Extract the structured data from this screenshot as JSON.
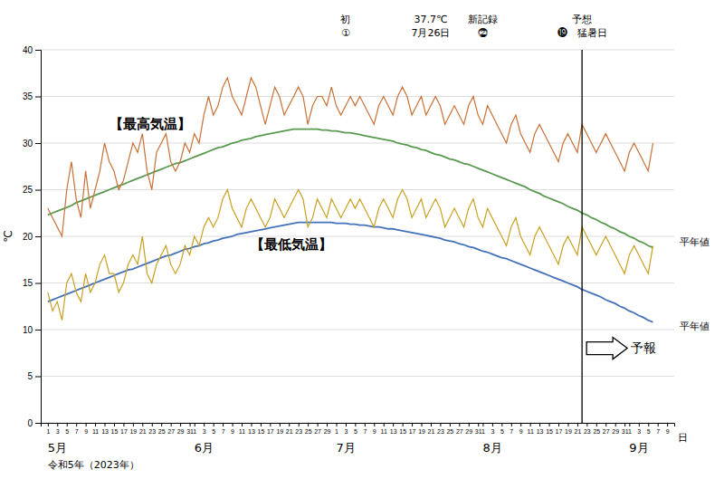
{
  "chart_data": {
    "type": "line",
    "y_label": "℃",
    "x_label": "日",
    "month_labels": [
      "5月",
      "6月",
      "7月",
      "8月",
      "9月"
    ],
    "year_label": "令和5年（2023年）",
    "categories": [
      "1",
      null,
      "3",
      null,
      "5",
      null,
      "7",
      null,
      "9",
      null,
      "11",
      null,
      "13",
      null,
      "15",
      null,
      "17",
      null,
      "19",
      null,
      "21",
      null,
      "23",
      null,
      "25",
      null,
      "27",
      null,
      "29",
      null,
      "31",
      "1",
      null,
      "3",
      null,
      "5",
      null,
      "7",
      null,
      "9",
      null,
      "11",
      null,
      "13",
      null,
      "15",
      null,
      "17",
      null,
      "19",
      null,
      "21",
      null,
      "23",
      null,
      "25",
      null,
      "27",
      null,
      "29",
      null,
      "1",
      null,
      "3",
      null,
      "5",
      null,
      "7",
      null,
      "9",
      null,
      "11",
      null,
      "13",
      null,
      "15",
      null,
      "17",
      null,
      "19",
      null,
      "21",
      null,
      "23",
      null,
      "25",
      null,
      "27",
      null,
      "29",
      null,
      "31",
      "1",
      null,
      "3",
      null,
      "5",
      null,
      "7",
      null,
      "9",
      null,
      "11",
      null,
      "13",
      null,
      "15",
      null,
      "17",
      null,
      "19",
      null,
      "21",
      null,
      "23",
      null,
      "25",
      null,
      "27",
      null,
      "29",
      null,
      "31",
      "1",
      null,
      "3",
      null,
      "5",
      null,
      "7",
      null,
      "9"
    ],
    "series": [
      {
        "name": "平年値",
        "color": "#5a9a50",
        "values": [
          22.3,
          22.5,
          22.7,
          22.9,
          23.1,
          23.3,
          23.6,
          23.8,
          24.0,
          24.2,
          24.4,
          24.6,
          24.8,
          25.0,
          25.2,
          25.4,
          25.6,
          25.8,
          26.0,
          26.2,
          26.4,
          26.6,
          26.8,
          27.0,
          27.2,
          27.4,
          27.6,
          27.8,
          27.9,
          28.1,
          28.3,
          28.5,
          28.7,
          28.9,
          29.1,
          29.3,
          29.5,
          29.6,
          29.8,
          30.0,
          30.1,
          30.3,
          30.4,
          30.5,
          30.7,
          30.8,
          30.9,
          31.0,
          31.1,
          31.2,
          31.3,
          31.4,
          31.5,
          31.5,
          31.5,
          31.5,
          31.5,
          31.5,
          31.4,
          31.4,
          31.3,
          31.3,
          31.2,
          31.1,
          31.1,
          31.0,
          30.9,
          30.8,
          30.7,
          30.6,
          30.5,
          30.4,
          30.3,
          30.2,
          30.0,
          29.9,
          29.8,
          29.6,
          29.5,
          29.3,
          29.2,
          29.0,
          28.8,
          28.7,
          28.5,
          28.3,
          28.2,
          28.0,
          27.8,
          27.7,
          27.5,
          27.3,
          27.1,
          26.9,
          26.7,
          26.5,
          26.3,
          26.1,
          25.9,
          25.7,
          25.5,
          25.3,
          25.0,
          24.8,
          24.6,
          24.3,
          24.1,
          23.9,
          23.7,
          23.5,
          23.2,
          23.0,
          22.8,
          22.5,
          22.3,
          22.0,
          21.8,
          21.5,
          21.3,
          21.0,
          20.8,
          20.5,
          20.3,
          20.0,
          19.8,
          19.5,
          19.3,
          19.0,
          18.8,
          null,
          null,
          null
        ]
      },
      {
        "name": "平年値",
        "color": "#4472b8",
        "values": [
          13.0,
          13.2,
          13.4,
          13.6,
          13.8,
          14.0,
          14.2,
          14.4,
          14.6,
          14.8,
          15.0,
          15.2,
          15.4,
          15.6,
          15.8,
          16.0,
          16.2,
          16.4,
          16.5,
          16.7,
          16.9,
          17.1,
          17.3,
          17.5,
          17.7,
          17.9,
          18.0,
          18.2,
          18.4,
          18.6,
          18.7,
          18.9,
          19.0,
          19.2,
          19.3,
          19.5,
          19.6,
          19.8,
          19.9,
          20.0,
          20.2,
          20.3,
          20.4,
          20.5,
          20.6,
          20.7,
          20.8,
          20.9,
          21.0,
          21.1,
          21.2,
          21.3,
          21.4,
          21.5,
          21.5,
          21.5,
          21.5,
          21.5,
          21.5,
          21.5,
          21.5,
          21.4,
          21.4,
          21.4,
          21.3,
          21.3,
          21.2,
          21.2,
          21.1,
          21.0,
          21.0,
          20.9,
          20.8,
          20.8,
          20.7,
          20.6,
          20.5,
          20.4,
          20.3,
          20.2,
          20.1,
          20.0,
          19.9,
          19.8,
          19.6,
          19.5,
          19.4,
          19.2,
          19.1,
          18.9,
          18.8,
          18.6,
          18.4,
          18.3,
          18.1,
          17.9,
          17.7,
          17.6,
          17.4,
          17.2,
          17.0,
          16.8,
          16.6,
          16.4,
          16.2,
          16.0,
          15.8,
          15.6,
          15.4,
          15.2,
          15.0,
          14.8,
          14.6,
          14.3,
          14.1,
          13.9,
          13.7,
          13.5,
          13.2,
          13.0,
          12.8,
          12.5,
          12.3,
          12.0,
          11.8,
          11.5,
          11.3,
          11.0,
          10.8,
          null,
          null,
          null
        ]
      },
      {
        "name": "【最高気温】",
        "color": "#c87137",
        "values": [
          23,
          22,
          21,
          20,
          25,
          28,
          24,
          22,
          27,
          23,
          25,
          27,
          30,
          28,
          27,
          25,
          26,
          28,
          30,
          29,
          31,
          27,
          25,
          29,
          30,
          31,
          28,
          27,
          28,
          30,
          29,
          31,
          30,
          33,
          35,
          33,
          34,
          36,
          37,
          35,
          34,
          33,
          35,
          37,
          36,
          34,
          32,
          34,
          36,
          35,
          33,
          34,
          35,
          36,
          35,
          32,
          34,
          35,
          35,
          34,
          36,
          34,
          33,
          34,
          35,
          34,
          35,
          34,
          33,
          32,
          34,
          35,
          34,
          33,
          35,
          36,
          35,
          33,
          34,
          35,
          33,
          34,
          35,
          34,
          32,
          33,
          34,
          33,
          32,
          34,
          35,
          33,
          32,
          34,
          33,
          32,
          31,
          30,
          32,
          33,
          31,
          30,
          29,
          31,
          32,
          31,
          30,
          29,
          28,
          30,
          31,
          30,
          29,
          32,
          31,
          30,
          29,
          30,
          31,
          30,
          29,
          28,
          27,
          29,
          30,
          29,
          28,
          27,
          30,
          null,
          null,
          null
        ]
      },
      {
        "name": "【最低気温】",
        "color": "#c8a020",
        "values": [
          14,
          12,
          13,
          11,
          15,
          16,
          14,
          13,
          16,
          14,
          15,
          17,
          18,
          16,
          16,
          14,
          15,
          17,
          18,
          17,
          20,
          16,
          15,
          17,
          18,
          19,
          17,
          16,
          17,
          19,
          18,
          20,
          19,
          21,
          22,
          21,
          22,
          24,
          25,
          23,
          22,
          21,
          23,
          24,
          23,
          22,
          21,
          22,
          24,
          23,
          22,
          23,
          24,
          25,
          24,
          21,
          22,
          24,
          23,
          22,
          24,
          23,
          22,
          23,
          24,
          23,
          24,
          23,
          22,
          21,
          23,
          24,
          23,
          22,
          24,
          25,
          24,
          22,
          23,
          24,
          22,
          23,
          24,
          23,
          21,
          22,
          23,
          22,
          21,
          23,
          24,
          22,
          21,
          23,
          22,
          21,
          20,
          19,
          21,
          22,
          20,
          19,
          18,
          20,
          21,
          20,
          19,
          18,
          17,
          19,
          20,
          19,
          18,
          21,
          20,
          19,
          18,
          19,
          20,
          19,
          18,
          17,
          16,
          18,
          19,
          18,
          17,
          16,
          19,
          null,
          null,
          null
        ]
      }
    ],
    "ylim": [
      0,
      40
    ],
    "yticks": [
      0,
      5,
      10,
      15,
      20,
      25,
      30,
      35,
      40
    ],
    "grid": true,
    "forecast": {
      "index": 113,
      "label": "予報"
    },
    "annotations": [
      {
        "index": 63,
        "lines": [
          "初",
          "①"
        ]
      },
      {
        "index": 81,
        "lines": [
          "37.7℃",
          "7月26日"
        ]
      },
      {
        "index": 92,
        "lines": [
          "新記録",
          "⓶"
        ]
      },
      {
        "index": 113,
        "lines": [
          "予想",
          "⓳　猛暑日"
        ]
      }
    ]
  }
}
